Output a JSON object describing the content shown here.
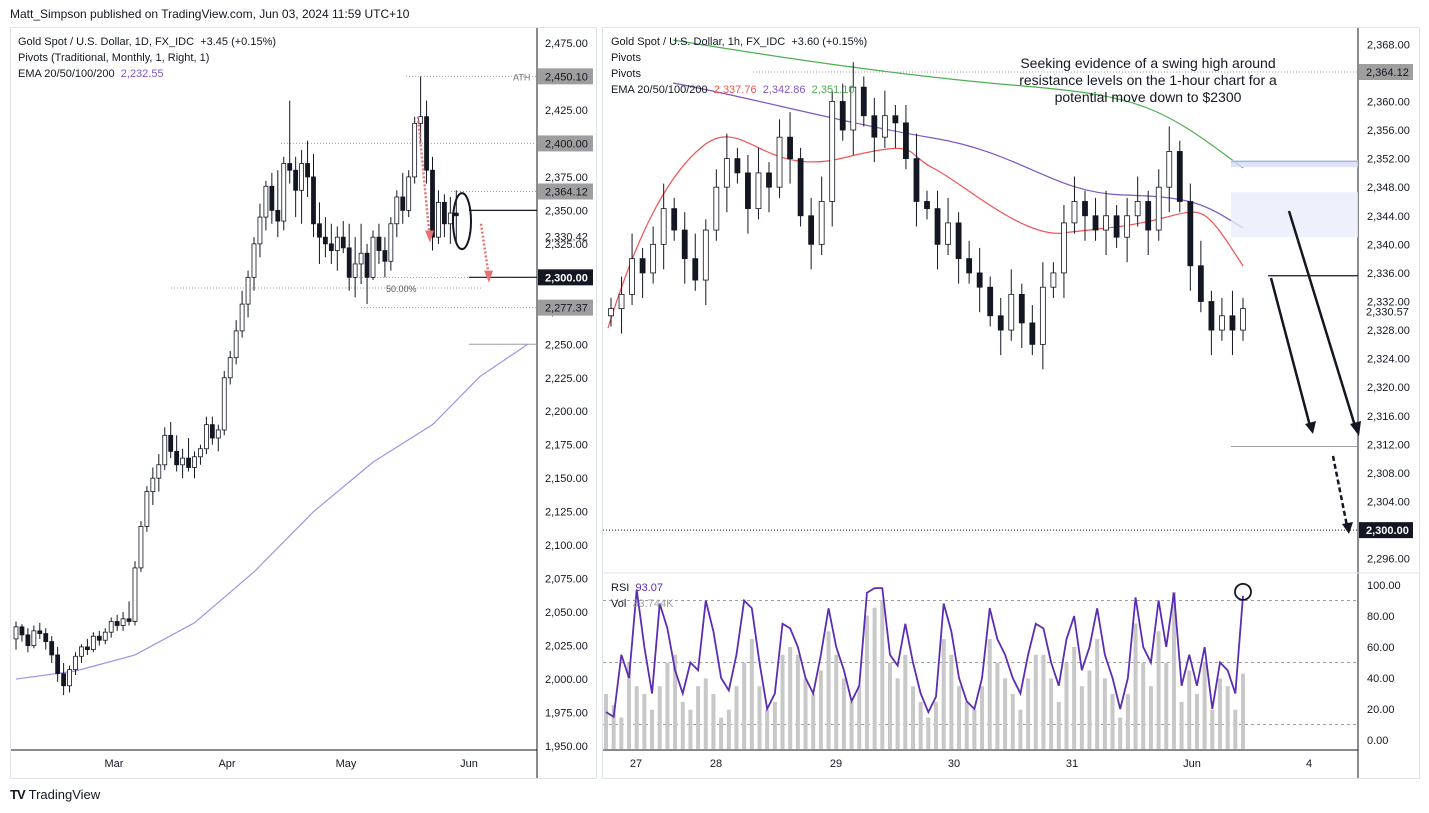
{
  "header": {
    "publisher": "Matt_Simpson published on TradingView.com, Jun 03, 2024 11:59 UTC+10"
  },
  "footer": {
    "logo": "TV",
    "brand": "TradingView"
  },
  "colors": {
    "up": "#131722",
    "down": "#131722",
    "ema20": "#ef5350",
    "ema50": "#7e57c2",
    "ema100": "#9c93e6",
    "ema200": "#4caf50",
    "rsi": "#5b2db5",
    "vol": "#c8c8c8",
    "arrow_red": "#e57373"
  },
  "left": {
    "title": "Gold Spot / U.S. Dollar, 1D, FX_IDC",
    "change": "+3.45 (+0.15%)",
    "pivots": "Pivots (Traditional, Monthly, 1, Right, 1)",
    "ema_label": "EMA 20/50/100/200",
    "ema_value": "2,232.55",
    "ath_label": "ATH",
    "fib_label": "50.00%"
  },
  "right": {
    "title": "Gold Spot / U.S. Dollar, 1h, FX_IDC",
    "change": "+3.60 (+0.15%)",
    "pivots1": "Pivots",
    "pivots2": "Pivots",
    "ema_label": "EMA 20/50/100/200",
    "ema_values": [
      "2,337.76",
      "2,342.86",
      "2,351.10"
    ],
    "annotation": "Seeking evidence of a swing high around resistance levels on the 1-hour chart for a potential move down to $2300",
    "rsi_label": "RSI",
    "rsi_value": "93.07",
    "vol_label": "Vol",
    "vol_value": "33.744K"
  },
  "chart_data": [
    {
      "type": "candlestick",
      "title": "Gold Spot / U.S. Dollar, 1D, FX_IDC",
      "ylim": [
        1950,
        2475
      ],
      "y_ticks": [
        "1,950.00",
        "1,975.00",
        "2,000.00",
        "2,025.00",
        "2,050.00",
        "2,075.00",
        "2,100.00",
        "2,125.00",
        "2,150.00",
        "2,175.00",
        "2,200.00",
        "2,225.00",
        "2,250.00",
        "2,275.00",
        "2,300.00",
        "2,325.00",
        "2,350.00",
        "2,375.00",
        "2,400.00",
        "2,425.00",
        "2,450.00",
        "2,475.00"
      ],
      "x_ticks": [
        "Mar",
        "Apr",
        "May",
        "Jun"
      ],
      "price_labels": [
        {
          "value": 2450.1,
          "text": "2,450.10",
          "style": "gray"
        },
        {
          "value": 2400.0,
          "text": "2,400.00",
          "style": "gray"
        },
        {
          "value": 2364.12,
          "text": "2,364.12",
          "style": "gray"
        },
        {
          "value": 2330.42,
          "text": "2,330.42",
          "style": "plain"
        },
        {
          "value": 2300.0,
          "text": "2,300.00",
          "style": "dark"
        },
        {
          "value": 2277.37,
          "text": "2,277.37",
          "style": "gray"
        }
      ],
      "candles": [
        [
          2030,
          2043,
          2022,
          2039
        ],
        [
          2039,
          2041,
          2028,
          2033
        ],
        [
          2033,
          2038,
          2020,
          2025
        ],
        [
          2025,
          2040,
          2023,
          2036
        ],
        [
          2036,
          2042,
          2030,
          2034
        ],
        [
          2034,
          2038,
          2022,
          2028
        ],
        [
          2028,
          2032,
          2012,
          2018
        ],
        [
          2018,
          2024,
          1998,
          2004
        ],
        [
          2004,
          2012,
          1988,
          1995
        ],
        [
          1995,
          2010,
          1990,
          2007
        ],
        [
          2007,
          2020,
          2003,
          2017
        ],
        [
          2017,
          2026,
          2012,
          2024
        ],
        [
          2024,
          2030,
          2018,
          2022
        ],
        [
          2022,
          2035,
          2020,
          2032
        ],
        [
          2032,
          2036,
          2025,
          2029
        ],
        [
          2029,
          2038,
          2026,
          2035
        ],
        [
          2035,
          2046,
          2031,
          2043
        ],
        [
          2043,
          2048,
          2036,
          2040
        ],
        [
          2040,
          2050,
          2036,
          2045
        ],
        [
          2045,
          2058,
          2040,
          2043
        ],
        [
          2043,
          2088,
          2040,
          2083
        ],
        [
          2083,
          2118,
          2080,
          2114
        ],
        [
          2114,
          2144,
          2110,
          2140
        ],
        [
          2140,
          2158,
          2130,
          2150
        ],
        [
          2150,
          2168,
          2140,
          2160
        ],
        [
          2160,
          2188,
          2156,
          2182
        ],
        [
          2182,
          2192,
          2165,
          2170
        ],
        [
          2170,
          2182,
          2155,
          2160
        ],
        [
          2160,
          2172,
          2150,
          2165
        ],
        [
          2165,
          2180,
          2155,
          2158
        ],
        [
          2158,
          2170,
          2150,
          2166
        ],
        [
          2166,
          2175,
          2160,
          2172
        ],
        [
          2172,
          2196,
          2168,
          2190
        ],
        [
          2190,
          2196,
          2175,
          2180
        ],
        [
          2180,
          2190,
          2170,
          2186
        ],
        [
          2186,
          2230,
          2182,
          2225
        ],
        [
          2225,
          2245,
          2220,
          2240
        ],
        [
          2240,
          2268,
          2235,
          2260
        ],
        [
          2260,
          2290,
          2255,
          2280
        ],
        [
          2280,
          2305,
          2270,
          2300
        ],
        [
          2300,
          2330,
          2290,
          2325
        ],
        [
          2325,
          2355,
          2315,
          2345
        ],
        [
          2345,
          2372,
          2335,
          2368
        ],
        [
          2368,
          2378,
          2340,
          2350
        ],
        [
          2350,
          2380,
          2330,
          2342
        ],
        [
          2342,
          2390,
          2335,
          2385
        ],
        [
          2385,
          2432,
          2370,
          2380
        ],
        [
          2380,
          2390,
          2345,
          2365
        ],
        [
          2365,
          2395,
          2340,
          2385
        ],
        [
          2385,
          2402,
          2360,
          2375
        ],
        [
          2375,
          2392,
          2330,
          2340
        ],
        [
          2340,
          2356,
          2310,
          2330
        ],
        [
          2330,
          2345,
          2315,
          2325
        ],
        [
          2325,
          2340,
          2310,
          2320
        ],
        [
          2320,
          2338,
          2305,
          2330
        ],
        [
          2330,
          2342,
          2318,
          2322
        ],
        [
          2322,
          2340,
          2290,
          2300
        ],
        [
          2300,
          2330,
          2285,
          2310
        ],
        [
          2310,
          2340,
          2295,
          2318
        ],
        [
          2318,
          2325,
          2280,
          2300
        ],
        [
          2300,
          2335,
          2298,
          2330
        ],
        [
          2330,
          2340,
          2310,
          2320
        ],
        [
          2320,
          2330,
          2300,
          2312
        ],
        [
          2312,
          2345,
          2305,
          2340
        ],
        [
          2340,
          2365,
          2330,
          2360
        ],
        [
          2360,
          2378,
          2340,
          2350
        ],
        [
          2350,
          2380,
          2345,
          2375
        ],
        [
          2375,
          2420,
          2370,
          2415
        ],
        [
          2415,
          2450,
          2400,
          2420
        ],
        [
          2420,
          2432,
          2370,
          2380
        ],
        [
          2380,
          2390,
          2320,
          2330
        ],
        [
          2330,
          2365,
          2325,
          2356
        ],
        [
          2356,
          2362,
          2330,
          2340
        ],
        [
          2340,
          2360,
          2325,
          2348
        ],
        [
          2348,
          2365,
          2326,
          2346
        ]
      ],
      "ema_series": [
        [
          0,
          2000
        ],
        [
          10,
          2006
        ],
        [
          20,
          2018
        ],
        [
          30,
          2042
        ],
        [
          40,
          2080
        ],
        [
          50,
          2125
        ],
        [
          60,
          2162
        ],
        [
          70,
          2190
        ],
        [
          78,
          2226
        ],
        [
          86,
          2250
        ]
      ],
      "levels": [
        2450.1,
        2400.0,
        2364.12,
        2300.0,
        2277.37
      ]
    },
    {
      "type": "candlestick",
      "title": "Gold Spot / U.S. Dollar, 1h, FX_IDC",
      "ylim": [
        2294,
        2370
      ],
      "y_ticks": [
        "2,296.00",
        "2,300.00",
        "2,304.00",
        "2,308.00",
        "2,312.00",
        "2,316.00",
        "2,320.00",
        "2,324.00",
        "2,328.00",
        "2,332.00",
        "2,336.00",
        "2,340.00",
        "2,344.00",
        "2,348.00",
        "2,352.00",
        "2,356.00",
        "2,360.00",
        "2,364.00",
        "2,368.00"
      ],
      "x_ticks": [
        "27",
        "28",
        "29",
        "30",
        "31",
        "Jun",
        "4"
      ],
      "price_labels": [
        {
          "value": 2364.12,
          "text": "2,364.12",
          "style": "gray"
        },
        {
          "value": 2330.57,
          "text": "2,330.57",
          "style": "plain"
        },
        {
          "value": 2300.0,
          "text": "2,300.00",
          "style": "dark"
        }
      ],
      "rsi_ticks": [
        "100.00",
        "80.00",
        "60.00",
        "40.00",
        "20.00",
        "0.00"
      ],
      "rsi": [
        18,
        15,
        55,
        40,
        97,
        60,
        30,
        88,
        72,
        45,
        30,
        50,
        45,
        90,
        70,
        40,
        32,
        55,
        90,
        85,
        50,
        20,
        30,
        75,
        72,
        60,
        40,
        30,
        55,
        85,
        60,
        45,
        25,
        35,
        95,
        98,
        98,
        55,
        48,
        75,
        50,
        30,
        18,
        28,
        88,
        70,
        40,
        25,
        20,
        40,
        85,
        65,
        55,
        40,
        30,
        55,
        75,
        72,
        50,
        35,
        65,
        80,
        45,
        60,
        85,
        55,
        40,
        20,
        40,
        92,
        60,
        50,
        90,
        60,
        95,
        35,
        55,
        35,
        60,
        20,
        50,
        45,
        30,
        93
      ],
      "vol": [
        35,
        28,
        20,
        55,
        40,
        35,
        25,
        40,
        55,
        60,
        30,
        25,
        40,
        45,
        35,
        20,
        25,
        40,
        55,
        70,
        40,
        25,
        30,
        60,
        65,
        60,
        45,
        35,
        50,
        75,
        60,
        45,
        30,
        40,
        85,
        90,
        95,
        55,
        45,
        60,
        40,
        30,
        20,
        30,
        70,
        60,
        40,
        30,
        25,
        40,
        70,
        55,
        45,
        35,
        25,
        45,
        60,
        60,
        45,
        30,
        55,
        65,
        40,
        50,
        70,
        45,
        35,
        20,
        35,
        80,
        55,
        40,
        75,
        55,
        100,
        30,
        50,
        35,
        55,
        25,
        45,
        40,
        25,
        48
      ]
    }
  ]
}
